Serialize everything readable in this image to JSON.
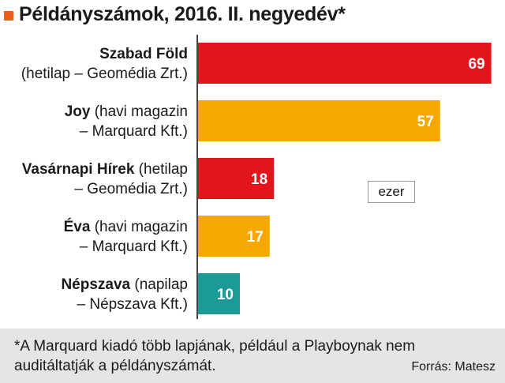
{
  "title": "Példányszámok, 2016. II. negyedév*",
  "unit_label": "ezer",
  "footnote": "*A Marquard kiadó több lapjának, például a Playboynak nem auditáltatják a példányszámát.",
  "source": "Forrás: Matesz",
  "colors": {
    "red": "#e3141b",
    "orange": "#f6a800",
    "teal": "#1b9a97",
    "accent": "#e8601c",
    "axis": "#444444"
  },
  "chart_data": {
    "type": "bar",
    "orientation": "horizontal",
    "title": "Példányszámok, 2016. II. negyedév*",
    "unit": "ezer",
    "categories": [
      {
        "bold": "Szabad Föld",
        "rest": "",
        "line2": "(hetilap – Geomédia Zrt.)"
      },
      {
        "bold": "Joy",
        "rest": " (havi magazin",
        "line2": "– Marquard Kft.)"
      },
      {
        "bold": "Vasárnapi Hírek",
        "rest": " (hetilap",
        "line2": "– Geomédia Zrt.)"
      },
      {
        "bold": "Éva",
        "rest": " (havi magazin",
        "line2": "– Marquard Kft.)"
      },
      {
        "bold": "Népszava",
        "rest": " (napilap",
        "line2": "– Népszava Kft.)"
      }
    ],
    "values": [
      69,
      57,
      18,
      17,
      10
    ],
    "data_labels": [
      "69",
      "57",
      "18",
      "17",
      "10"
    ],
    "bar_colors": [
      "#e3141b",
      "#f6a800",
      "#e3141b",
      "#f6a800",
      "#1b9a97"
    ],
    "xlim": [
      0,
      70
    ]
  }
}
